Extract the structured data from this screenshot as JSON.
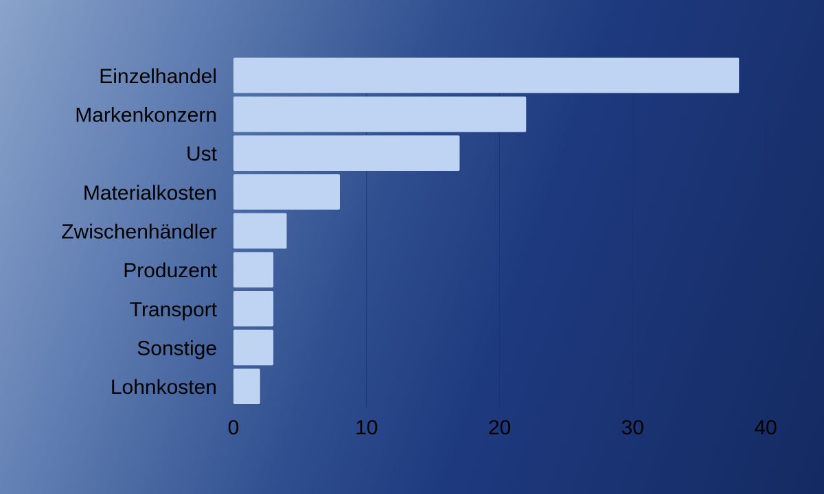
{
  "chart_data": {
    "type": "bar",
    "orientation": "horizontal",
    "title": "",
    "xlabel": "",
    "ylabel": "",
    "categories": [
      "Einzelhandel",
      "Markenkonzern",
      "Ust",
      "Materialkosten",
      "Zwischenhändler",
      "Produzent",
      "Transport",
      "Sonstige",
      "Lohnkosten"
    ],
    "values": [
      38,
      22,
      17,
      8,
      4,
      3,
      3,
      3,
      2
    ],
    "xlim": [
      0,
      40
    ],
    "xticks": [
      0,
      10,
      20,
      30,
      40
    ],
    "xtick_labels": [
      "0",
      "10",
      "20",
      "30",
      "40"
    ],
    "grid": true,
    "bar_color": "#bfd3f2",
    "label_color": "#000000"
  }
}
